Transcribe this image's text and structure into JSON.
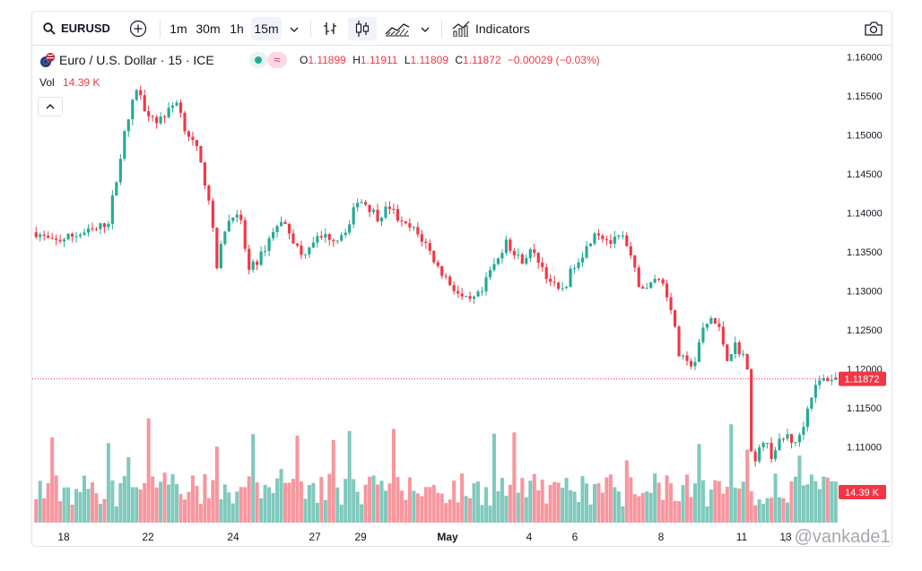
{
  "toolbar": {
    "symbol": "EURUSD",
    "intervals": [
      "1m",
      "30m",
      "1h",
      "15m"
    ],
    "active_interval": "15m",
    "indicators_label": "Indicators"
  },
  "legend": {
    "title": "Euro / U.S. Dollar · 15 · ICE",
    "open_label": "O",
    "open": "1.11899",
    "high_label": "H",
    "high": "1.11911",
    "low_label": "L",
    "low": "1.11809",
    "close_label": "C",
    "close": "1.11872",
    "change": "−0.00029 (−0.03%)",
    "vol_label": "Vol",
    "vol_value": "14.39 K"
  },
  "colors": {
    "up": "#22ab94",
    "down": "#f23645",
    "up_vol": "#80c9bd",
    "down_vol": "#f7969e"
  },
  "watermark": "@vankade1",
  "chart_data": {
    "type": "candlestick",
    "y_ticks": [
      "1.16000",
      "1.15500",
      "1.15000",
      "1.14500",
      "1.14000",
      "1.13500",
      "1.13000",
      "1.12500",
      "1.12000",
      "1.11500",
      "1.11000"
    ],
    "x_ticks": [
      "18",
      "22",
      "24",
      "27",
      "29",
      "May",
      "4",
      "6",
      "8",
      "11",
      "13"
    ],
    "ylim": [
      1.105,
      1.1605
    ],
    "last_price": "1.11872",
    "last_volume": "14.39 K",
    "close_path": [
      [
        0,
        1.1375
      ],
      [
        4,
        1.1362
      ],
      [
        10,
        1.1372
      ],
      [
        15,
        1.1378
      ],
      [
        18,
        1.139
      ],
      [
        20,
        1.1445
      ],
      [
        22,
        1.15
      ],
      [
        24,
        1.154
      ],
      [
        25,
        1.156
      ],
      [
        27,
        1.1535
      ],
      [
        30,
        1.1518
      ],
      [
        33,
        1.153
      ],
      [
        35,
        1.1545
      ],
      [
        37,
        1.151
      ],
      [
        40,
        1.148
      ],
      [
        43,
        1.142
      ],
      [
        45,
        1.133
      ],
      [
        47,
        1.138
      ],
      [
        49,
        1.14
      ],
      [
        51,
        1.1385
      ],
      [
        53,
        1.1325
      ],
      [
        56,
        1.1345
      ],
      [
        59,
        1.1378
      ],
      [
        62,
        1.139
      ],
      [
        64,
        1.1365
      ],
      [
        66,
        1.1345
      ],
      [
        69,
        1.1365
      ],
      [
        72,
        1.137
      ],
      [
        75,
        1.1368
      ],
      [
        78,
        1.1385
      ],
      [
        80,
        1.1418
      ],
      [
        82,
        1.1412
      ],
      [
        85,
        1.1395
      ],
      [
        88,
        1.1408
      ],
      [
        91,
        1.1385
      ],
      [
        94,
        1.1378
      ],
      [
        97,
        1.136
      ],
      [
        100,
        1.133
      ],
      [
        103,
        1.131
      ],
      [
        106,
        1.129
      ],
      [
        108,
        1.1285
      ],
      [
        111,
        1.1298
      ],
      [
        113,
        1.1325
      ],
      [
        115,
        1.134
      ],
      [
        117,
        1.1368
      ],
      [
        119,
        1.1345
      ],
      [
        121,
        1.134
      ],
      [
        123,
        1.135
      ],
      [
        125,
        1.134
      ],
      [
        127,
        1.132
      ],
      [
        130,
        1.1298
      ],
      [
        132,
        1.131
      ],
      [
        134,
        1.1335
      ],
      [
        137,
        1.1355
      ],
      [
        139,
        1.1378
      ],
      [
        141,
        1.137
      ],
      [
        143,
        1.1362
      ],
      [
        146,
        1.1368
      ],
      [
        148,
        1.134
      ],
      [
        150,
        1.131
      ],
      [
        152,
        1.13
      ],
      [
        154,
        1.1318
      ],
      [
        156,
        1.131
      ],
      [
        158,
        1.128
      ],
      [
        160,
        1.1218
      ],
      [
        162,
        1.1205
      ],
      [
        164,
        1.121
      ],
      [
        166,
        1.125
      ],
      [
        168,
        1.1265
      ],
      [
        170,
        1.125
      ],
      [
        172,
        1.1215
      ],
      [
        174,
        1.123
      ],
      [
        176,
        1.1218
      ],
      [
        177,
        1.1195
      ],
      [
        178,
        1.11
      ],
      [
        179,
        1.108
      ],
      [
        181,
        1.111
      ],
      [
        183,
        1.109
      ],
      [
        185,
        1.1105
      ],
      [
        187,
        1.1115
      ],
      [
        189,
        1.1102
      ],
      [
        191,
        1.113
      ],
      [
        193,
        1.1168
      ],
      [
        195,
        1.1183
      ],
      [
        197,
        1.1188
      ],
      [
        199,
        1.1187
      ]
    ]
  }
}
